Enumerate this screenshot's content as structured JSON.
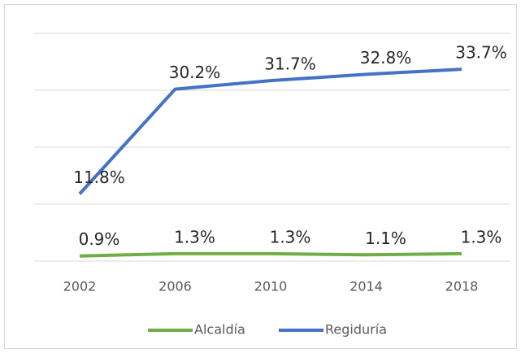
{
  "chart_data": {
    "type": "line",
    "x": [
      "2002",
      "2006",
      "2010",
      "2014",
      "2018"
    ],
    "series": [
      {
        "name": "Alcaldía",
        "color": "#70ad47",
        "values": [
          0.9,
          1.3,
          1.3,
          1.1,
          1.3
        ],
        "value_labels": [
          "0.9%",
          "1.3%",
          "1.3%",
          "1.1%",
          "1.3%"
        ]
      },
      {
        "name": "Regiduría",
        "color": "#4472c4",
        "values": [
          11.8,
          30.2,
          31.7,
          32.8,
          33.7
        ],
        "value_labels": [
          "11.8%",
          "30.2%",
          "31.7%",
          "32.8%",
          "33.7%"
        ]
      }
    ],
    "ylim": [
      0,
      40
    ],
    "yticks": [
      0,
      10,
      20,
      30,
      40
    ],
    "grid": true,
    "legend": "bottom"
  }
}
